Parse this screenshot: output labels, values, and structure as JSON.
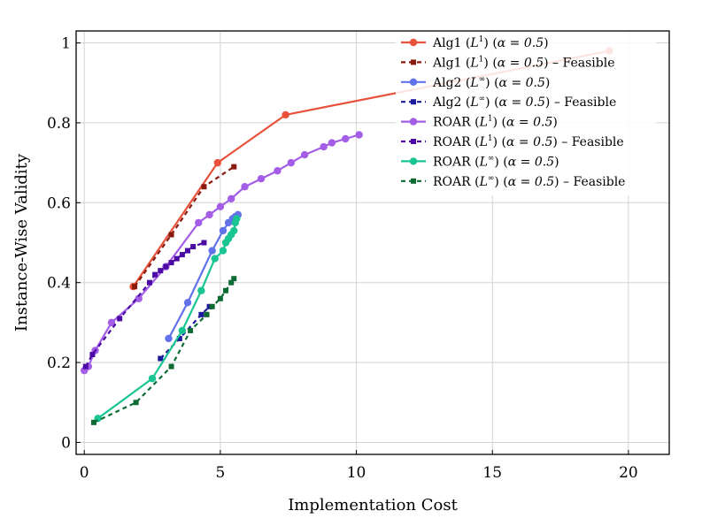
{
  "chart_data": {
    "type": "line",
    "title": "",
    "xlabel": "Implementation Cost",
    "ylabel": "Instance-Wise Validity",
    "xlim": [
      -0.3,
      21.5
    ],
    "ylim": [
      -0.03,
      1.03
    ],
    "xticks": [
      0,
      5,
      10,
      15,
      20
    ],
    "xtick_labels": [
      "0",
      "5",
      "10",
      "15",
      "20"
    ],
    "yticks": [
      0,
      0.2,
      0.4,
      0.6,
      0.8,
      1
    ],
    "ytick_labels": [
      "0",
      "0.2",
      "0.4",
      "0.6",
      "0.8",
      "1"
    ],
    "grid": true,
    "legend_position": "top-right",
    "series": [
      {
        "name": "Alg1 (L1) (α = 0.5)",
        "label_parts": [
          "Alg1 (",
          "L",
          "1",
          ") (",
          "α = 0.5",
          ")",
          ""
        ],
        "color": "#e8513b",
        "style": "solid",
        "marker": "circle",
        "x": [
          1.8,
          4.9,
          7.4,
          19.3
        ],
        "y": [
          0.39,
          0.7,
          0.82,
          0.98
        ]
      },
      {
        "name": "Alg1 (L1) (α = 0.5) – Feasible",
        "label_parts": [
          "Alg1 (",
          "L",
          "1",
          ") (",
          "α = 0.5",
          ")",
          " – Feasible"
        ],
        "color": "#8b1a0e",
        "style": "dashed",
        "marker": "square",
        "x": [
          1.85,
          3.2,
          4.4,
          5.5
        ],
        "y": [
          0.39,
          0.52,
          0.64,
          0.69
        ]
      },
      {
        "name": "Alg2 (L∞) (α = 0.5)",
        "label_parts": [
          "Alg2 (",
          "L",
          "∞",
          ") (",
          "α = 0.5",
          ")",
          ""
        ],
        "color": "#6272ea",
        "style": "solid",
        "marker": "circle",
        "x": [
          3.1,
          3.8,
          4.7,
          5.1,
          5.3,
          5.45,
          5.55,
          5.65
        ],
        "y": [
          0.26,
          0.35,
          0.48,
          0.53,
          0.55,
          0.56,
          0.565,
          0.57
        ]
      },
      {
        "name": "Alg2 (L∞) (α = 0.5) – Feasible",
        "label_parts": [
          "Alg2 (",
          "L",
          "∞",
          ") (",
          "α = 0.5",
          ")",
          " – Feasible"
        ],
        "color": "#1a1a9a",
        "style": "dashed",
        "marker": "square",
        "x": [
          2.8,
          3.5,
          4.3,
          4.6
        ],
        "y": [
          0.21,
          0.26,
          0.32,
          0.34
        ]
      },
      {
        "name": "ROAR (L1) (α = 0.5)",
        "label_parts": [
          "ROAR (",
          "L",
          "1",
          ") (",
          "α = 0.5",
          ")",
          ""
        ],
        "color": "#a35de6",
        "style": "solid",
        "marker": "circle",
        "x": [
          0.0,
          0.15,
          0.4,
          1.0,
          2.0,
          3.0,
          4.2,
          4.6,
          5.0,
          5.4,
          5.9,
          6.5,
          7.1,
          7.6,
          8.1,
          8.8,
          9.1,
          9.6,
          10.1
        ],
        "y": [
          0.18,
          0.19,
          0.23,
          0.3,
          0.36,
          0.44,
          0.55,
          0.57,
          0.59,
          0.61,
          0.64,
          0.66,
          0.68,
          0.7,
          0.72,
          0.74,
          0.75,
          0.76,
          0.77
        ]
      },
      {
        "name": "ROAR (L1) (α = 0.5) – Feasible",
        "label_parts": [
          "ROAR (",
          "L",
          "1",
          ") (",
          "α = 0.5",
          ")",
          " – Feasible"
        ],
        "color": "#4b0aa3",
        "style": "dashed",
        "marker": "square",
        "x": [
          0.05,
          0.3,
          1.3,
          2.4,
          2.6,
          2.8,
          3.0,
          3.2,
          3.4,
          3.6,
          3.8,
          4.0,
          4.4
        ],
        "y": [
          0.19,
          0.22,
          0.31,
          0.4,
          0.42,
          0.43,
          0.44,
          0.45,
          0.46,
          0.47,
          0.48,
          0.49,
          0.5
        ]
      },
      {
        "name": "ROAR (L∞) (α = 0.5)",
        "label_parts": [
          "ROAR (",
          "L",
          "∞",
          ") (",
          "α = 0.5",
          ")",
          ""
        ],
        "color": "#18c593",
        "style": "solid",
        "marker": "circle",
        "x": [
          0.5,
          2.5,
          3.6,
          4.3,
          4.8,
          5.1,
          5.2,
          5.3,
          5.4,
          5.5,
          5.55,
          5.6
        ],
        "y": [
          0.06,
          0.16,
          0.28,
          0.38,
          0.46,
          0.48,
          0.5,
          0.51,
          0.52,
          0.53,
          0.55,
          0.56
        ]
      },
      {
        "name": "ROAR (L∞) (α = 0.5) – Feasible",
        "label_parts": [
          "ROAR (",
          "L",
          "∞",
          ") (",
          "α = 0.5",
          ")",
          " – Feasible"
        ],
        "color": "#0e6b34",
        "style": "dashed",
        "marker": "square",
        "x": [
          0.35,
          1.9,
          3.2,
          3.9,
          4.5,
          4.7,
          5.0,
          5.2,
          5.4,
          5.5
        ],
        "y": [
          0.05,
          0.1,
          0.19,
          0.28,
          0.32,
          0.34,
          0.36,
          0.38,
          0.4,
          0.41
        ]
      }
    ]
  }
}
